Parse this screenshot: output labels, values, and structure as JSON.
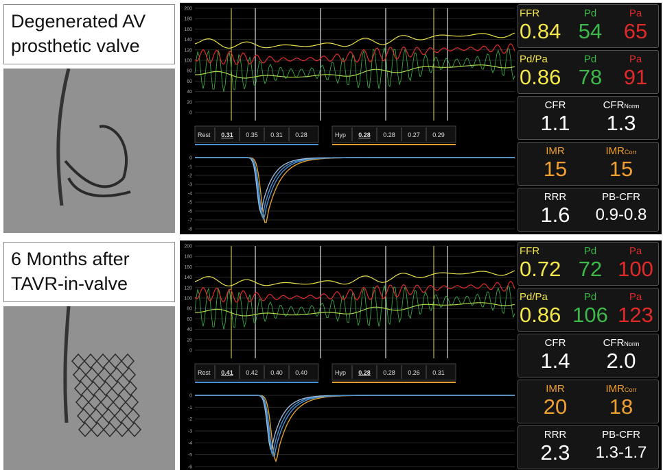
{
  "panels": [
    {
      "label_lines": [
        "Degenerated AV",
        "prosthetic valve"
      ],
      "pressure_yticks": [
        200,
        180,
        160,
        140,
        120,
        100,
        80,
        60,
        40,
        20,
        0
      ],
      "rest": {
        "label": "Rest",
        "values": [
          "0.31",
          "0.35",
          "0.31",
          "0.28"
        ]
      },
      "hyp": {
        "label": "Hyp",
        "values": [
          "0.28",
          "0.28",
          "0.27",
          "0.29"
        ]
      },
      "thermo_yticks": [
        0,
        -1,
        -2,
        -3,
        -4,
        -5,
        -6,
        -7,
        -8
      ],
      "metrics": [
        [
          {
            "label": "FFR",
            "color": "#f2e64a",
            "value": "0.84"
          },
          {
            "label": "Pd",
            "color": "#3cb94a",
            "value": "54"
          },
          {
            "label": "Pa",
            "color": "#e02a2a",
            "value": "65"
          }
        ],
        [
          {
            "label": "Pd/Pa",
            "color": "#f2e64a",
            "value": "0.86"
          },
          {
            "label": "Pd",
            "color": "#3cb94a",
            "value": "78"
          },
          {
            "label": "Pa",
            "color": "#e02a2a",
            "value": "91"
          }
        ],
        [
          {
            "label": "CFR",
            "color": "#ffffff",
            "value": "1.1"
          },
          {
            "label": "CFR",
            "sub": "Norm",
            "color": "#ffffff",
            "value": "1.3"
          }
        ],
        [
          {
            "label": "IMR",
            "color": "#f0a030",
            "value": "15"
          },
          {
            "label": "IMR",
            "sub": "Corr",
            "color": "#f0a030",
            "value": "15"
          }
        ],
        [
          {
            "label": "RRR",
            "color": "#ffffff",
            "value": "1.6"
          },
          {
            "label": "PB-CFR",
            "color": "#ffffff",
            "value": "0.9-0.8"
          }
        ]
      ]
    },
    {
      "label_lines": [
        "6 Months after",
        "TAVR-in-valve"
      ],
      "pressure_yticks": [
        200,
        180,
        160,
        140,
        120,
        100,
        80,
        60,
        40,
        20,
        0
      ],
      "rest": {
        "label": "Rest",
        "values": [
          "0.41",
          "0.42",
          "0.40",
          "0.40"
        ]
      },
      "hyp": {
        "label": "Hyp",
        "values": [
          "0.28",
          "0.28",
          "0.26",
          "0.31"
        ]
      },
      "thermo_yticks": [
        0,
        -1,
        -2,
        -3,
        -4,
        -5,
        -6
      ],
      "metrics": [
        [
          {
            "label": "FFR",
            "color": "#f2e64a",
            "value": "0.72"
          },
          {
            "label": "Pd",
            "color": "#3cb94a",
            "value": "72"
          },
          {
            "label": "Pa",
            "color": "#e02a2a",
            "value": "100"
          }
        ],
        [
          {
            "label": "Pd/Pa",
            "color": "#f2e64a",
            "value": "0.86"
          },
          {
            "label": "Pd",
            "color": "#3cb94a",
            "value": "106"
          },
          {
            "label": "Pa",
            "color": "#e02a2a",
            "value": "123"
          }
        ],
        [
          {
            "label": "CFR",
            "color": "#ffffff",
            "value": "1.4"
          },
          {
            "label": "CFR",
            "sub": "Norm",
            "color": "#ffffff",
            "value": "2.0"
          }
        ],
        [
          {
            "label": "IMR",
            "color": "#f0a030",
            "value": "20"
          },
          {
            "label": "IMR",
            "sub": "Corr",
            "color": "#f0a030",
            "value": "18"
          }
        ],
        [
          {
            "label": "RRR",
            "color": "#ffffff",
            "value": "2.3"
          },
          {
            "label": "PB-CFR",
            "color": "#ffffff",
            "value": "1.3-1.7"
          }
        ]
      ]
    }
  ]
}
